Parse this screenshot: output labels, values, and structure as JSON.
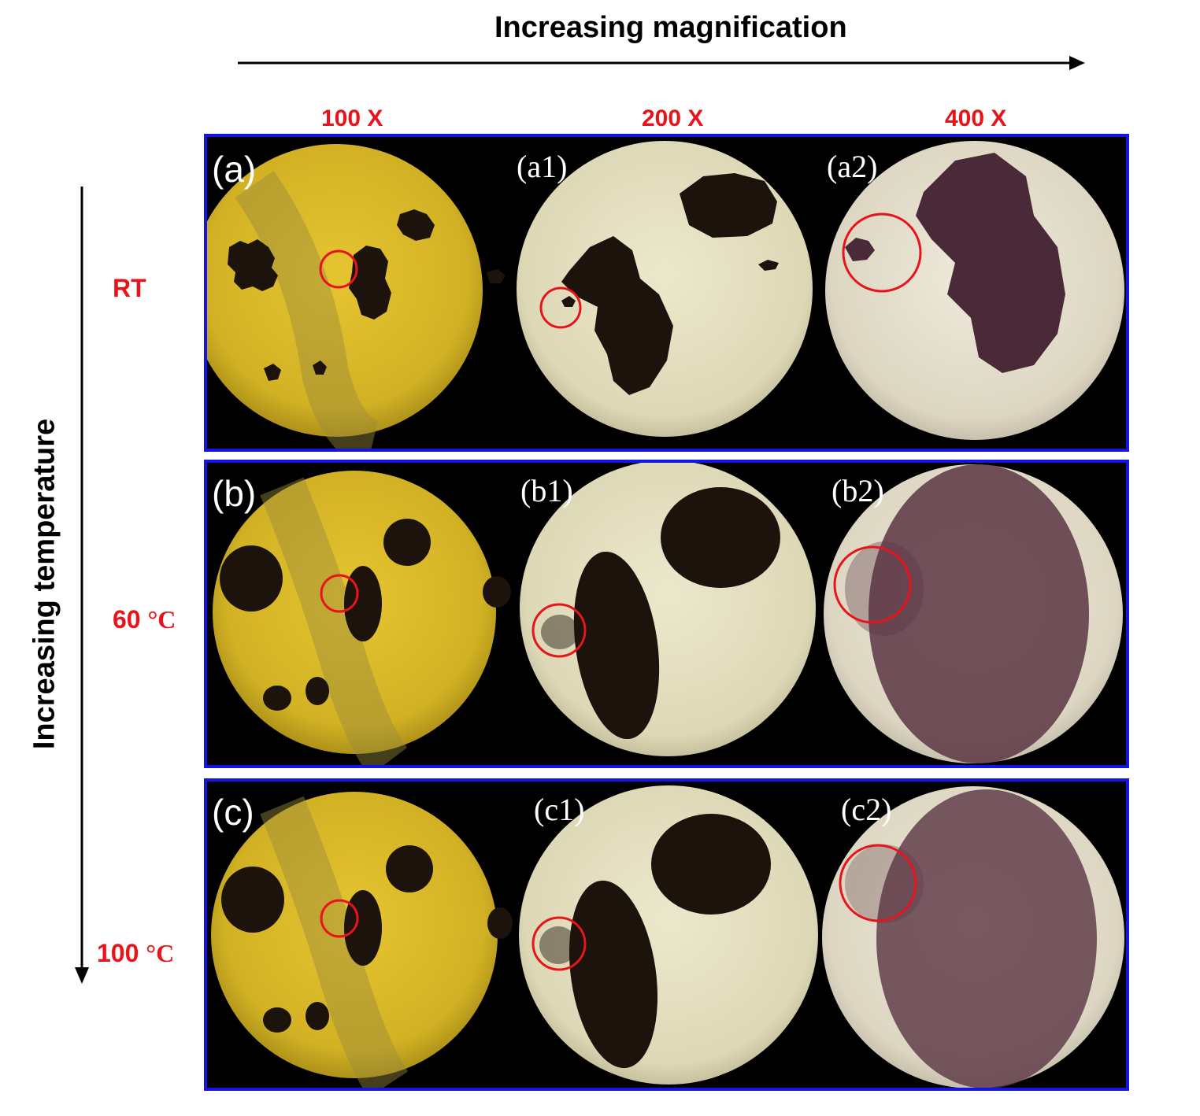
{
  "axis_titles": {
    "magnification": "Increasing magnification",
    "temperature": "Increasing temperature"
  },
  "columns": [
    {
      "label": "100 X"
    },
    {
      "label": "200 X"
    },
    {
      "label": "400 X"
    }
  ],
  "rows": [
    {
      "label_main": "RT",
      "label_unit": ""
    },
    {
      "label_main": "60 ",
      "label_unit": "°C"
    },
    {
      "label_main": "100 ",
      "label_unit": "°C"
    }
  ],
  "panels": [
    [
      "(a)",
      "(a1)",
      "(a2)"
    ],
    [
      "(b)",
      "(b1)",
      "(b2)"
    ],
    [
      "(c)",
      "(c1)",
      "(c2)"
    ]
  ],
  "colors": {
    "frame_blue": "#1414e6",
    "label_red": "#e8141b",
    "highlight_circle_red": "#e8141b",
    "field_100x": "#d8b92a",
    "field_200x": "#e9e5c6",
    "field_400x": "#ece7d2",
    "particle_dark": "#1c130c",
    "particle_purple": "#4a2a38"
  }
}
